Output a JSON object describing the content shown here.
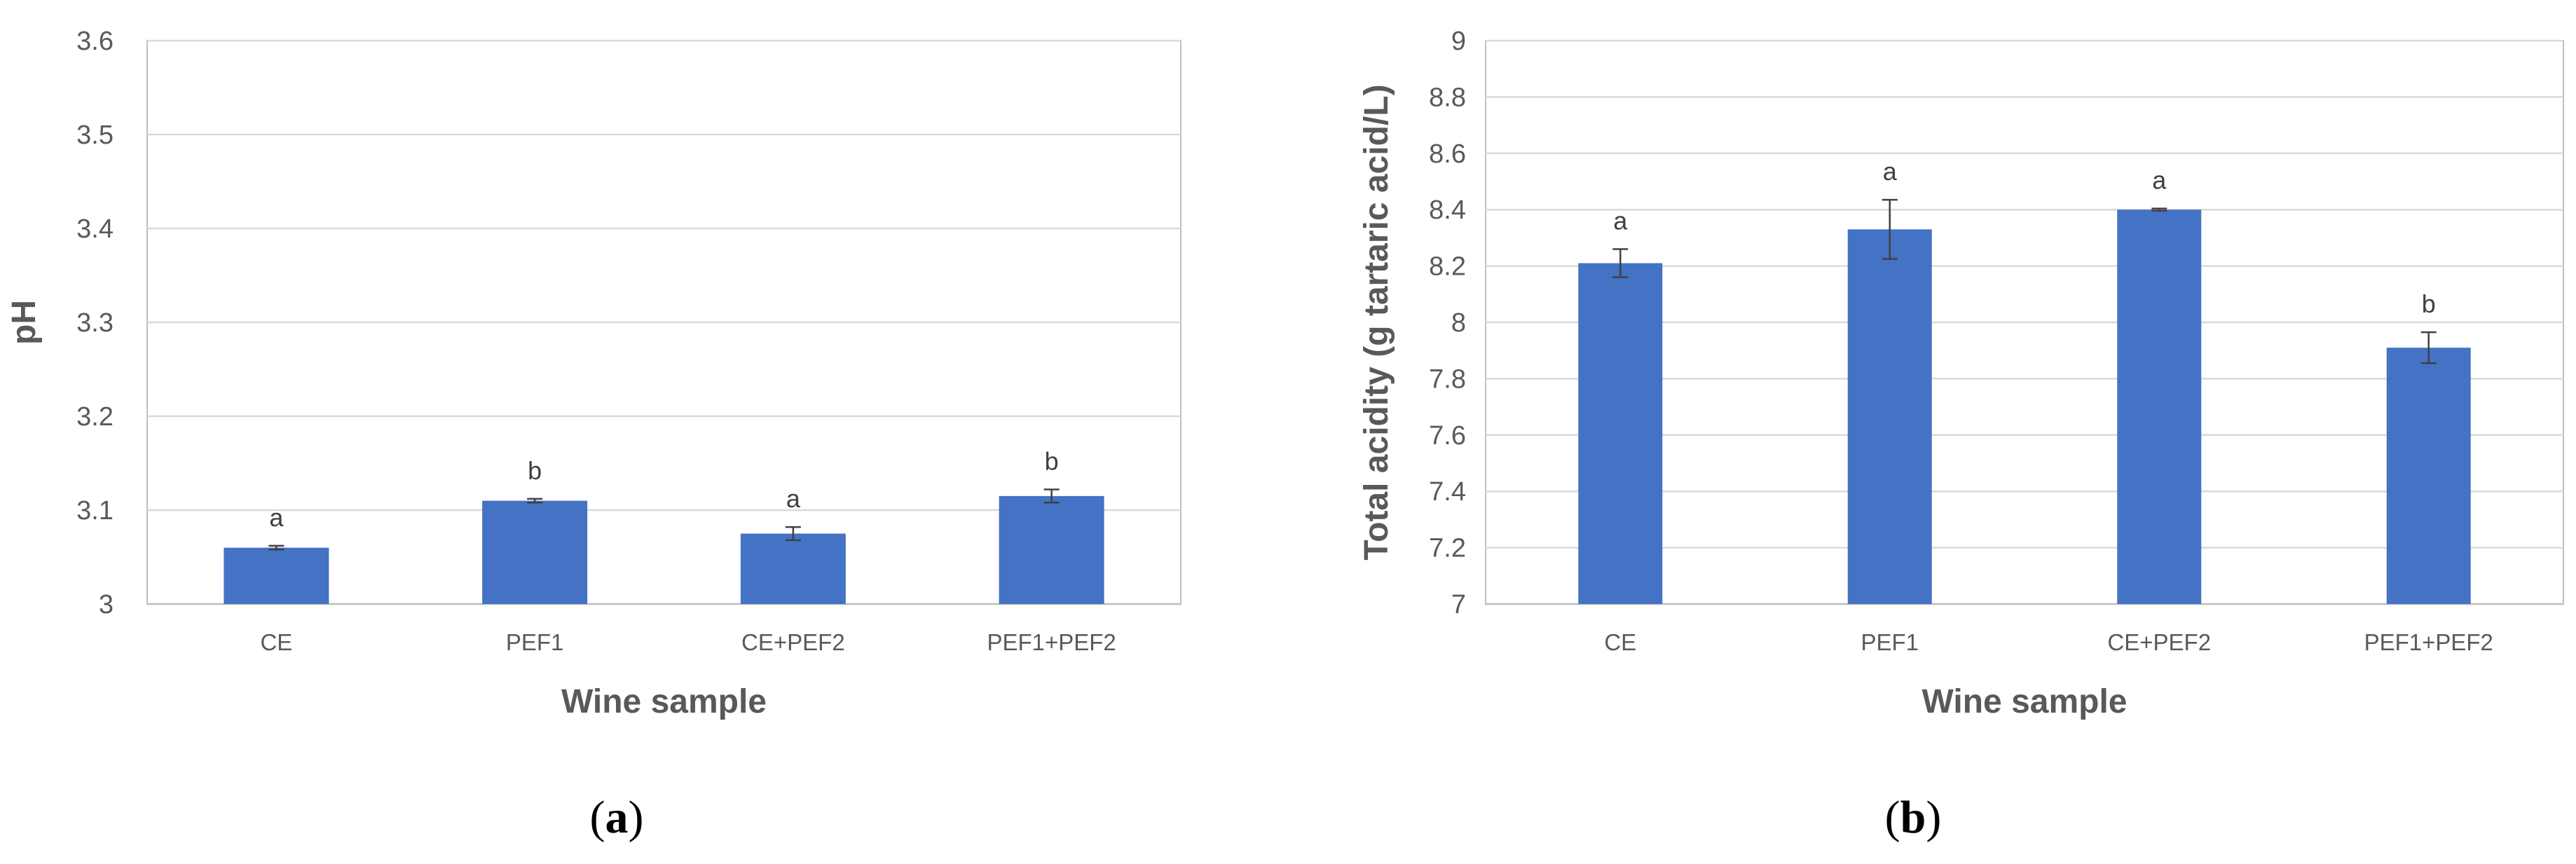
{
  "chart_data": [
    {
      "type": "bar",
      "panel_label": "a",
      "title": "",
      "categories": [
        "CE",
        "PEF1",
        "CE+PEF2",
        "PEF1+PEF2"
      ],
      "values": [
        3.06,
        3.11,
        3.075,
        3.115
      ],
      "errors": [
        0.002,
        0.002,
        0.007,
        0.007
      ],
      "significance": [
        "a",
        "b",
        "a",
        "b"
      ],
      "xlabel": "Wine sample",
      "ylabel": "pH",
      "ylim": [
        3,
        3.6
      ],
      "yticks": [
        "3",
        "3.1",
        "3.2",
        "3.3",
        "3.4",
        "3.5",
        "3.6"
      ],
      "grid": true,
      "bar_color": "#4472C4"
    },
    {
      "type": "bar",
      "panel_label": "b",
      "title": "",
      "categories": [
        "CE",
        "PEF1",
        "CE+PEF2",
        "PEF1+PEF2"
      ],
      "values": [
        8.21,
        8.33,
        8.4,
        7.91
      ],
      "errors": [
        0.05,
        0.105,
        0.004,
        0.055
      ],
      "significance": [
        "a",
        "a",
        "a",
        "b"
      ],
      "xlabel": "Wine sample",
      "ylabel": "Total acidity (g tartaric acid/L)",
      "ylim": [
        7,
        9
      ],
      "yticks": [
        "7",
        "7.2",
        "7.4",
        "7.6",
        "7.8",
        "8",
        "8.2",
        "8.4",
        "8.6",
        "8.8",
        "9"
      ],
      "grid": true,
      "bar_color": "#4472C4"
    }
  ]
}
